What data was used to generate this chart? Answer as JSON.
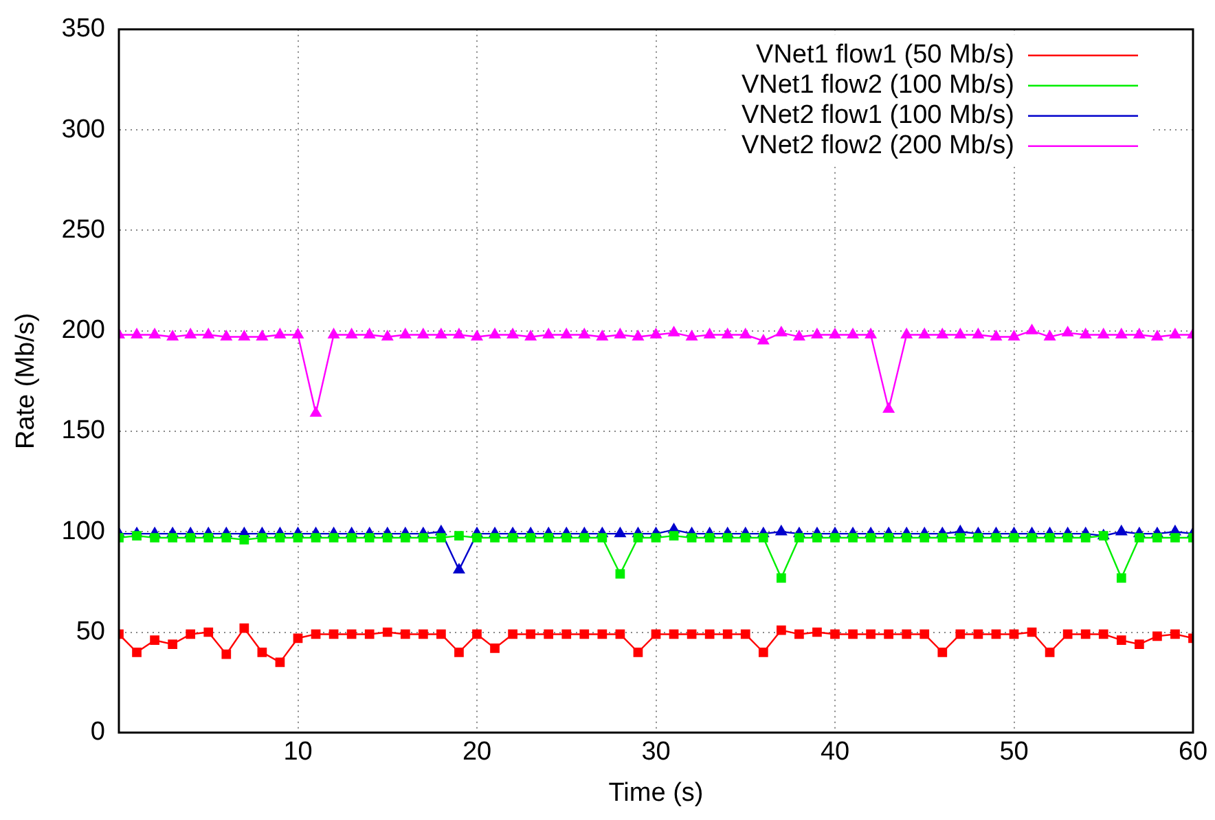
{
  "chart_data": {
    "type": "line",
    "xlabel": "Time (s)",
    "ylabel": "Rate (Mb/s)",
    "x": [
      0,
      1,
      2,
      3,
      4,
      5,
      6,
      7,
      8,
      9,
      10,
      11,
      12,
      13,
      14,
      15,
      16,
      17,
      18,
      19,
      20,
      21,
      22,
      23,
      24,
      25,
      26,
      27,
      28,
      29,
      30,
      31,
      32,
      33,
      34,
      35,
      36,
      37,
      38,
      39,
      40,
      41,
      42,
      43,
      44,
      45,
      46,
      47,
      48,
      49,
      50,
      51,
      52,
      53,
      54,
      55,
      56,
      57,
      58,
      59,
      60
    ],
    "xlim": [
      0,
      60
    ],
    "xticks": [
      10,
      20,
      30,
      40,
      50,
      60
    ],
    "ylim": [
      0,
      350
    ],
    "yticks": [
      0,
      50,
      100,
      150,
      200,
      250,
      300,
      350
    ],
    "grid": true,
    "legend": "top right",
    "line_style": "solid",
    "series": [
      {
        "name": "VNet1 flow1 (50 Mb/s)",
        "color": "#ff0000",
        "marker": "square",
        "values": [
          49,
          40,
          46,
          44,
          49,
          50,
          39,
          52,
          40,
          35,
          47,
          49,
          49,
          49,
          49,
          50,
          49,
          49,
          49,
          40,
          49,
          42,
          49,
          49,
          49,
          49,
          49,
          49,
          49,
          40,
          49,
          49,
          49,
          49,
          49,
          49,
          40,
          51,
          49,
          50,
          49,
          49,
          49,
          49,
          49,
          49,
          40,
          49,
          49,
          49,
          49,
          50,
          40,
          49,
          49,
          49,
          46,
          44,
          48,
          49,
          47
        ]
      },
      {
        "name": "VNet1 flow2 (100 Mb/s)",
        "color": "#00ee00",
        "marker": "square",
        "values": [
          97,
          98,
          97,
          97,
          97,
          97,
          97,
          96,
          97,
          97,
          97,
          97,
          97,
          97,
          97,
          97,
          97,
          97,
          97,
          98,
          97,
          97,
          97,
          97,
          97,
          97,
          97,
          97,
          79,
          97,
          97,
          98,
          97,
          97,
          97,
          97,
          97,
          77,
          97,
          97,
          97,
          97,
          97,
          97,
          97,
          97,
          97,
          97,
          97,
          97,
          97,
          97,
          97,
          97,
          97,
          98,
          77,
          97,
          97,
          97,
          97
        ]
      },
      {
        "name": "VNet2 flow1 (100 Mb/s)",
        "color": "#0000cc",
        "marker": "triangle",
        "values": [
          99,
          99,
          99,
          99,
          99,
          99,
          99,
          99,
          99,
          99,
          99,
          99,
          99,
          99,
          99,
          99,
          99,
          99,
          100,
          81,
          99,
          99,
          99,
          99,
          99,
          99,
          99,
          99,
          99,
          99,
          99,
          101,
          99,
          99,
          99,
          99,
          99,
          100,
          99,
          99,
          99,
          99,
          99,
          99,
          99,
          99,
          99,
          100,
          99,
          99,
          99,
          99,
          99,
          99,
          99,
          98,
          100,
          99,
          99,
          100,
          99
        ]
      },
      {
        "name": "VNet2 flow2 (200 Mb/s)",
        "color": "#ff00ff",
        "marker": "triangle",
        "values": [
          198,
          198,
          198,
          197,
          198,
          198,
          197,
          197,
          197,
          198,
          198,
          159,
          198,
          198,
          198,
          197,
          198,
          198,
          198,
          198,
          197,
          198,
          198,
          197,
          198,
          198,
          198,
          197,
          198,
          197,
          198,
          199,
          197,
          198,
          198,
          198,
          195,
          199,
          197,
          198,
          198,
          198,
          198,
          161,
          198,
          198,
          198,
          198,
          198,
          197,
          197,
          200,
          197,
          199,
          198,
          198,
          198,
          198,
          197,
          198,
          198
        ]
      }
    ]
  }
}
